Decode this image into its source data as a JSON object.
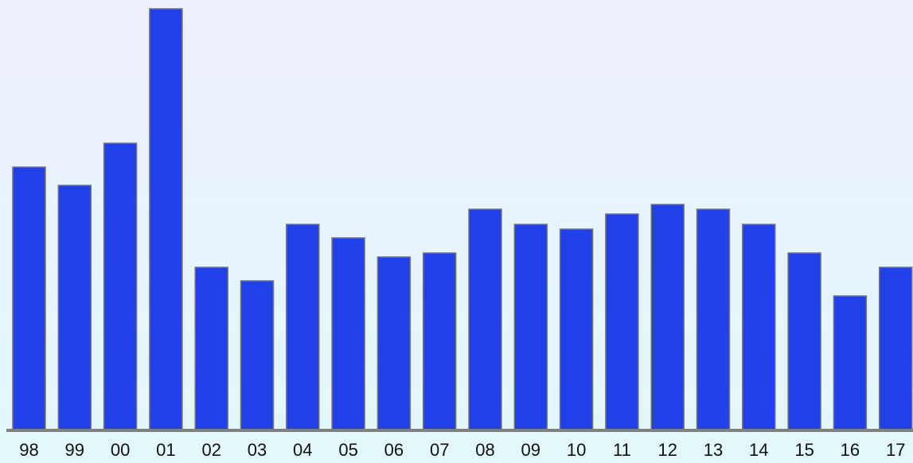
{
  "chart_data": {
    "type": "bar",
    "categories": [
      "98",
      "99",
      "00",
      "01",
      "02",
      "03",
      "04",
      "05",
      "06",
      "07",
      "08",
      "09",
      "10",
      "11",
      "12",
      "13",
      "14",
      "15",
      "16",
      "17"
    ],
    "values": [
      330,
      307,
      360,
      529,
      204,
      187,
      258,
      241,
      217,
      222,
      277,
      258,
      252,
      271,
      283,
      277,
      258,
      222,
      168,
      204
    ],
    "color": "#2040e8"
  }
}
